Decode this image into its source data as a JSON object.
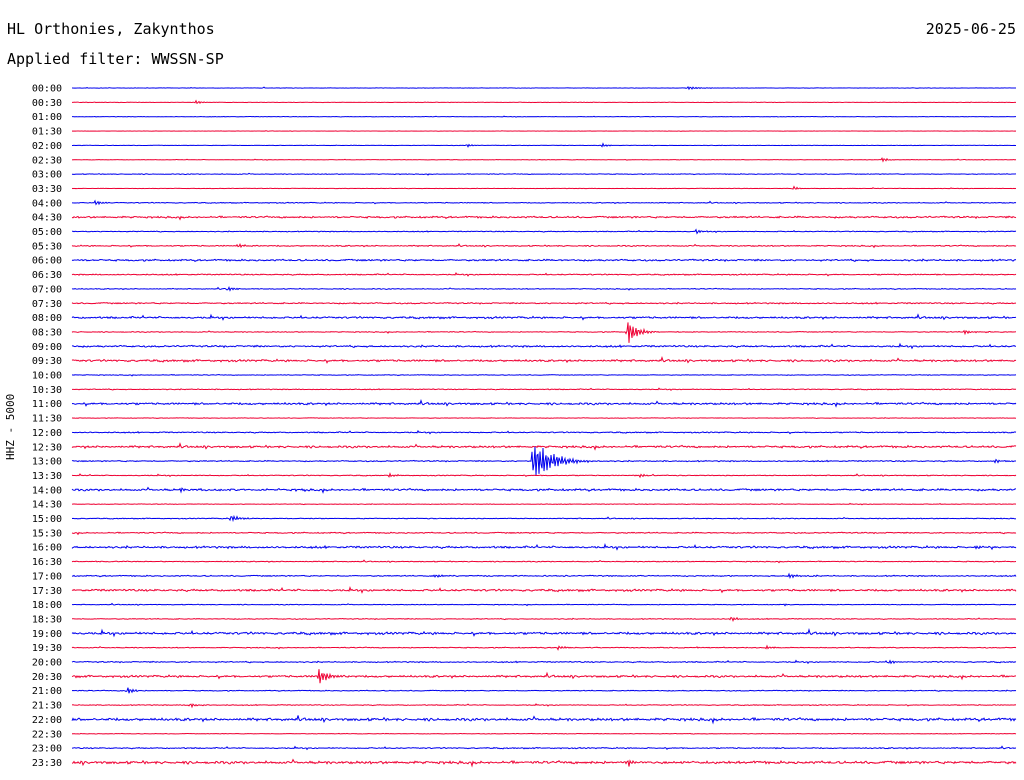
{
  "header": {
    "station": "HL Orthonies, Zakynthos",
    "filter": "Applied filter: WWSSN-SP",
    "date": "2025-06-25"
  },
  "colors": {
    "even": "#0000ee",
    "odd": "#ee0033"
  },
  "chart_data": {
    "type": "line",
    "title": "HL Orthonies, Zakynthos",
    "subtitle": "Applied filter: WWSSN-SP",
    "ylabel": "HHZ - 5000",
    "date": "2025-06-25",
    "row_labels": [
      "00:00",
      "00:30",
      "01:00",
      "01:30",
      "02:00",
      "02:30",
      "03:00",
      "03:30",
      "04:00",
      "04:30",
      "05:00",
      "05:30",
      "06:00",
      "06:30",
      "07:00",
      "07:30",
      "08:00",
      "08:30",
      "09:00",
      "09:30",
      "10:00",
      "10:30",
      "11:00",
      "11:30",
      "12:00",
      "12:30",
      "13:00",
      "13:30",
      "14:00",
      "14:30",
      "15:00",
      "15:30",
      "16:00",
      "16:30",
      "17:00",
      "17:30",
      "18:00",
      "18:30",
      "19:00",
      "19:30",
      "20:00",
      "20:30",
      "21:00",
      "21:30",
      "22:00",
      "22:30",
      "23:00",
      "23:30"
    ],
    "minutes_per_row": 30,
    "noise_level": [
      0.3,
      0.3,
      0.3,
      0.2,
      0.3,
      0.3,
      0.5,
      0.3,
      0.6,
      1.2,
      0.6,
      0.8,
      1.2,
      0.8,
      0.6,
      0.9,
      1.3,
      0.6,
      1.2,
      1.4,
      0.5,
      0.6,
      1.4,
      0.4,
      0.8,
      1.4,
      0.8,
      0.6,
      1.4,
      0.4,
      0.6,
      0.8,
      1.4,
      0.6,
      0.8,
      1.4,
      0.5,
      0.6,
      1.6,
      0.6,
      0.8,
      1.4,
      0.6,
      0.6,
      1.8,
      0.4,
      0.8,
      1.8
    ],
    "events": [
      {
        "row": 0,
        "minute": 19.5,
        "amplitude": 2,
        "duration": 1.2
      },
      {
        "row": 1,
        "minute": 3.9,
        "amplitude": 3,
        "duration": 0.4
      },
      {
        "row": 4,
        "minute": 12.5,
        "amplitude": 3,
        "duration": 0.5
      },
      {
        "row": 4,
        "minute": 16.8,
        "amplitude": 3,
        "duration": 0.5
      },
      {
        "row": 5,
        "minute": 25.7,
        "amplitude": 3,
        "duration": 0.6
      },
      {
        "row": 7,
        "minute": 22.9,
        "amplitude": 4,
        "duration": 0.4
      },
      {
        "row": 8,
        "minute": 0.7,
        "amplitude": 4,
        "duration": 0.5
      },
      {
        "row": 10,
        "minute": 19.8,
        "amplitude": 4,
        "duration": 0.5
      },
      {
        "row": 11,
        "minute": 5.2,
        "amplitude": 3,
        "duration": 0.8
      },
      {
        "row": 14,
        "minute": 4.9,
        "amplitude": 4,
        "duration": 0.6
      },
      {
        "row": 17,
        "minute": 17.6,
        "amplitude": 18,
        "duration": 0.9
      },
      {
        "row": 17,
        "minute": 28.3,
        "amplitude": 4,
        "duration": 0.6
      },
      {
        "row": 26,
        "minute": 14.6,
        "amplitude": 27,
        "duration": 1.8
      },
      {
        "row": 26,
        "minute": 29.3,
        "amplitude": 5,
        "duration": 0.4
      },
      {
        "row": 27,
        "minute": 10.0,
        "amplitude": 3,
        "duration": 0.6
      },
      {
        "row": 27,
        "minute": 18.0,
        "amplitude": 3,
        "duration": 0.5
      },
      {
        "row": 28,
        "minute": 3.4,
        "amplitude": 4,
        "duration": 0.3
      },
      {
        "row": 30,
        "minute": 5.0,
        "amplitude": 5,
        "duration": 0.8
      },
      {
        "row": 32,
        "minute": 28.7,
        "amplitude": 3,
        "duration": 0.4
      },
      {
        "row": 34,
        "minute": 11.5,
        "amplitude": 3,
        "duration": 0.6
      },
      {
        "row": 34,
        "minute": 22.7,
        "amplitude": 3,
        "duration": 0.9
      },
      {
        "row": 36,
        "minute": 22.6,
        "amplitude": 3,
        "duration": 0.3
      },
      {
        "row": 37,
        "minute": 20.9,
        "amplitude": 4,
        "duration": 0.5
      },
      {
        "row": 39,
        "minute": 15.4,
        "amplitude": 3,
        "duration": 0.7
      },
      {
        "row": 39,
        "minute": 22.0,
        "amplitude": 3,
        "duration": 0.5
      },
      {
        "row": 40,
        "minute": 25.9,
        "amplitude": 3,
        "duration": 0.6
      },
      {
        "row": 41,
        "minute": 7.8,
        "amplitude": 12,
        "duration": 0.8
      },
      {
        "row": 42,
        "minute": 1.7,
        "amplitude": 7,
        "duration": 0.5
      },
      {
        "row": 43,
        "minute": 3.7,
        "amplitude": 3,
        "duration": 0.6
      },
      {
        "row": 47,
        "minute": 17.6,
        "amplitude": 6,
        "duration": 0.6
      }
    ]
  }
}
